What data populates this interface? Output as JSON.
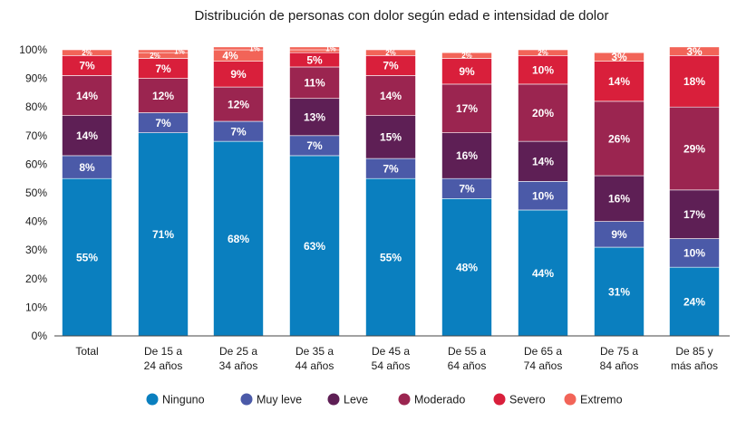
{
  "chart_data": {
    "type": "bar",
    "stacked": true,
    "title": "Distribución de personas con dolor según edad e intensidad de dolor",
    "xlabel": "",
    "ylabel": "",
    "ylim": [
      0,
      100
    ],
    "yticks": [
      "0%",
      "10%",
      "20%",
      "30%",
      "40%",
      "50%",
      "60%",
      "70%",
      "80%",
      "90%",
      "100%"
    ],
    "grid": false,
    "legend_position": "bottom",
    "categories": [
      [
        "Total"
      ],
      [
        "De 15 a",
        "24 años"
      ],
      [
        "De 25 a",
        "34 años"
      ],
      [
        "De 35 a",
        "44 años"
      ],
      [
        "De 45 a",
        "54 años"
      ],
      [
        "De 55 a",
        "64 años"
      ],
      [
        "De 65 a",
        "74 años"
      ],
      [
        "De 75 a",
        "84 años"
      ],
      [
        "De 85 y",
        "más años"
      ]
    ],
    "series": [
      {
        "name": "Ninguno",
        "color": "#0a7fbf",
        "values": [
          55,
          71,
          68,
          63,
          55,
          48,
          44,
          31,
          24
        ]
      },
      {
        "name": "Muy leve",
        "color": "#4b5aa8",
        "values": [
          8,
          7,
          7,
          7,
          7,
          7,
          10,
          9,
          10
        ]
      },
      {
        "name": "Leve",
        "color": "#5e1f55",
        "values": [
          14,
          0,
          0,
          13,
          15,
          16,
          14,
          16,
          17
        ]
      },
      {
        "name": "Moderado",
        "color": "#9b2550",
        "values": [
          14,
          12,
          12,
          11,
          14,
          17,
          20,
          26,
          29
        ]
      },
      {
        "name": "Severo",
        "color": "#d91f3b",
        "values": [
          7,
          7,
          9,
          5,
          7,
          9,
          10,
          14,
          18
        ]
      },
      {
        "name": "Extremo",
        "color": "#f26458",
        "values": [
          2,
          2,
          4,
          1,
          2,
          2,
          2,
          3,
          3
        ]
      }
    ],
    "extra_segments": [
      {
        "category_index": 1,
        "after_series": 5,
        "value": 1,
        "color": "#f26458"
      },
      {
        "category_index": 2,
        "after_series": 5,
        "value": 1,
        "color": "#f26458"
      },
      {
        "category_index": 3,
        "after_series": 5,
        "value": 1,
        "color": "#f26458"
      }
    ],
    "data_labels": [
      [
        "55%",
        "8%",
        "14%",
        "14%",
        "7%",
        "2%"
      ],
      [
        "71%",
        "7%",
        "",
        "12%",
        "7%",
        "2%"
      ],
      [
        "68%",
        "7%",
        "",
        "12%",
        "9%",
        "4%"
      ],
      [
        "63%",
        "7%",
        "13%",
        "11%",
        "5%",
        ""
      ],
      [
        "55%",
        "7%",
        "15%",
        "14%",
        "7%",
        "2%"
      ],
      [
        "48%",
        "7%",
        "16%",
        "17%",
        "9%",
        "2%"
      ],
      [
        "44%",
        "10%",
        "14%",
        "20%",
        "10%",
        "2%"
      ],
      [
        "31%",
        "9%",
        "16%",
        "26%",
        "14%",
        "3%"
      ],
      [
        "24%",
        "10%",
        "17%",
        "29%",
        "18%",
        "3%"
      ]
    ],
    "extra_labels": [
      "",
      "1%",
      "1%",
      "1%",
      "",
      "",
      "",
      "",
      ""
    ]
  }
}
